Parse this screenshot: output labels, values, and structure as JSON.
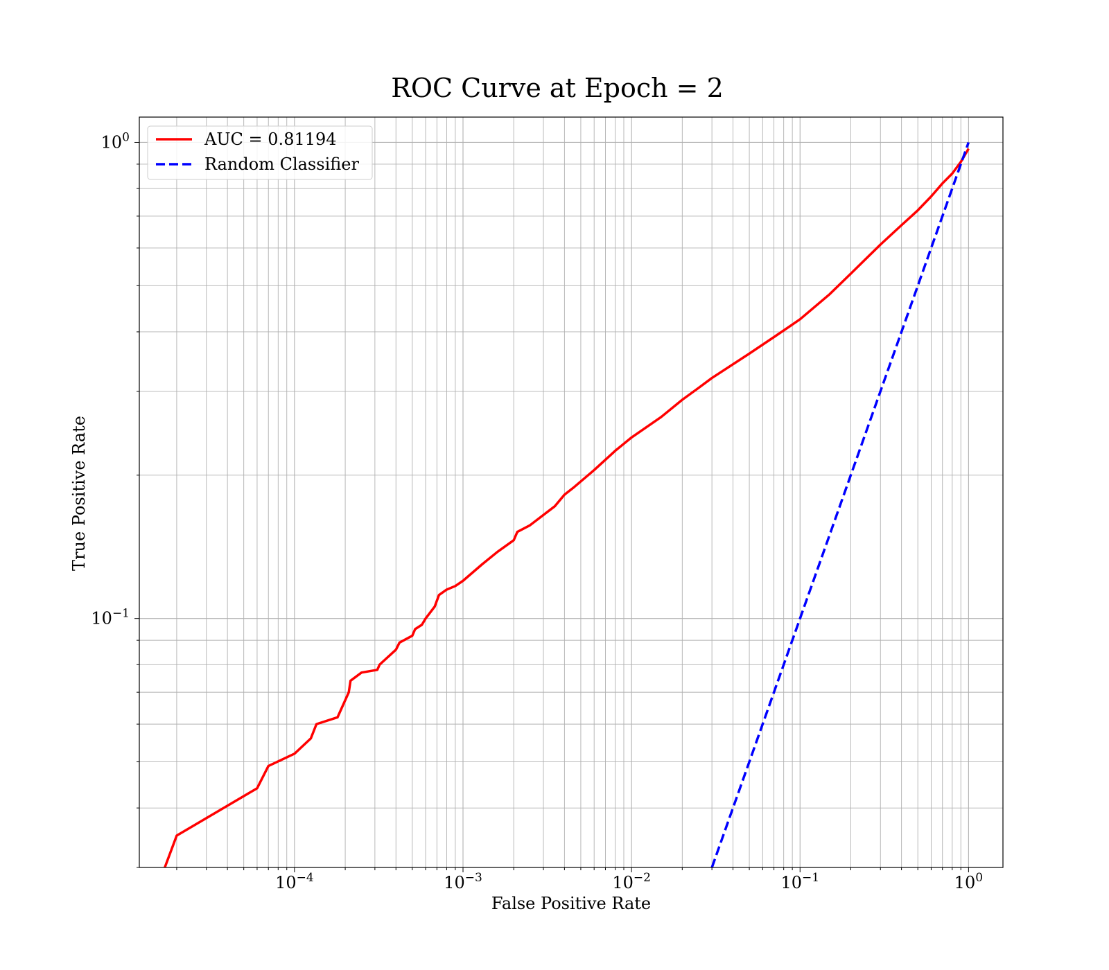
{
  "chart_data": {
    "type": "line",
    "title": "ROC Curve at Epoch = 2",
    "xlabel": "False Positive Rate",
    "ylabel": "True Positive Rate",
    "xscale": "log",
    "yscale": "log",
    "xlim": [
      1.2e-05,
      1.6
    ],
    "ylim": [
      0.03,
      1.13
    ],
    "grid": true,
    "legend_position": "top-left",
    "x_tick_labels": [
      {
        "value": 0.0001,
        "base": "10",
        "exp": "−4"
      },
      {
        "value": 0.001,
        "base": "10",
        "exp": "−3"
      },
      {
        "value": 0.01,
        "base": "10",
        "exp": "−2"
      },
      {
        "value": 0.1,
        "base": "10",
        "exp": "−1"
      },
      {
        "value": 1,
        "base": "10",
        "exp": "0"
      }
    ],
    "y_tick_labels": [
      {
        "value": 0.1,
        "base": "10",
        "exp": "−1"
      },
      {
        "value": 1,
        "base": "10",
        "exp": "0"
      }
    ],
    "series": [
      {
        "name": "AUC = 0.81194",
        "color": "#ff0000",
        "style": "solid",
        "x": [
          1.7e-05,
          2e-05,
          6e-05,
          7e-05,
          0.0001,
          0.000125,
          0.000135,
          0.00018,
          0.00021,
          0.000215,
          0.00025,
          0.00031,
          0.00032,
          0.0004,
          0.00042,
          0.0005,
          0.00052,
          0.00057,
          0.0006,
          0.00068,
          0.00072,
          0.0008,
          0.0009,
          0.001,
          0.0013,
          0.0016,
          0.002,
          0.0021,
          0.0025,
          0.003,
          0.0035,
          0.004,
          0.0045,
          0.006,
          0.008,
          0.01,
          0.015,
          0.02,
          0.025,
          0.03,
          0.05,
          0.07,
          0.1,
          0.15,
          0.2,
          0.3,
          0.4,
          0.5,
          0.6,
          0.7,
          0.8,
          0.9,
          1.0
        ],
        "y": [
          0.03,
          0.035,
          0.044,
          0.049,
          0.052,
          0.056,
          0.06,
          0.062,
          0.07,
          0.074,
          0.077,
          0.078,
          0.08,
          0.086,
          0.089,
          0.092,
          0.095,
          0.097,
          0.1,
          0.106,
          0.112,
          0.115,
          0.117,
          0.12,
          0.13,
          0.138,
          0.146,
          0.152,
          0.157,
          0.165,
          0.172,
          0.182,
          0.188,
          0.205,
          0.225,
          0.24,
          0.265,
          0.288,
          0.305,
          0.32,
          0.36,
          0.39,
          0.425,
          0.48,
          0.53,
          0.61,
          0.67,
          0.72,
          0.77,
          0.82,
          0.86,
          0.91,
          0.97
        ]
      },
      {
        "name": "Random Classifier",
        "color": "#0000ff",
        "style": "dashed",
        "x": [
          0.03,
          1.0
        ],
        "y": [
          0.03,
          1.0
        ]
      }
    ]
  }
}
